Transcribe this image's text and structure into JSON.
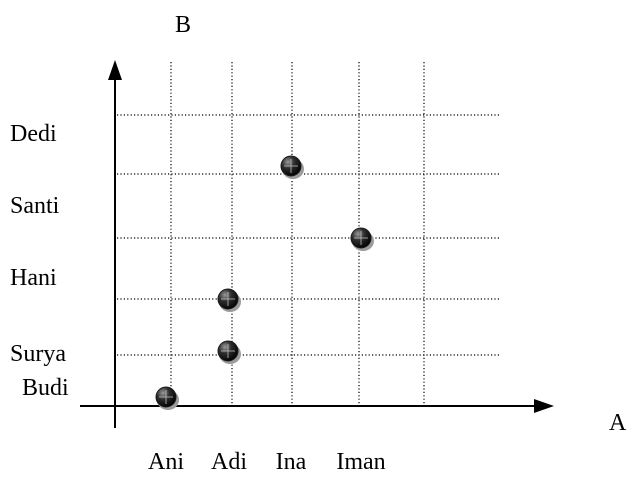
{
  "chart_data": {
    "type": "scatter",
    "xlabel": "A",
    "ylabel": "B",
    "categories_x": [
      "Ani",
      "Adi",
      "Ina",
      "Iman"
    ],
    "categories_y": [
      "Budi",
      "Surya",
      "Hani",
      "Santi",
      "Dedi"
    ],
    "points": [
      {
        "x": "Ani",
        "y": "Budi"
      },
      {
        "x": "Adi",
        "y": "Surya"
      },
      {
        "x": "Adi",
        "y": "Hani"
      },
      {
        "x": "Iman",
        "y": "Santi"
      },
      {
        "x": "Ina",
        "y": "Dedi"
      }
    ],
    "grid": true,
    "grid_style": "dotted",
    "marker_color": "#1c1c1c"
  }
}
